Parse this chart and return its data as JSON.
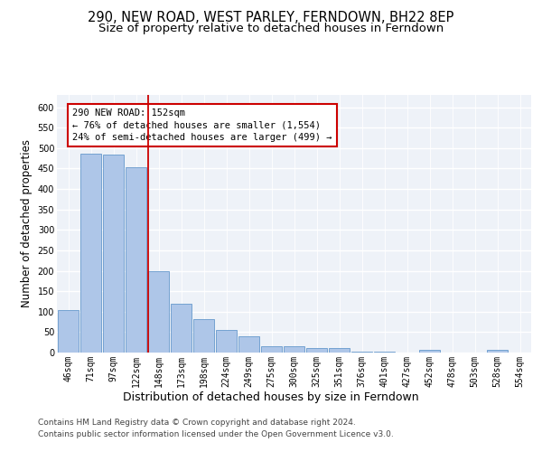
{
  "title": "290, NEW ROAD, WEST PARLEY, FERNDOWN, BH22 8EP",
  "subtitle": "Size of property relative to detached houses in Ferndown",
  "xlabel": "Distribution of detached houses by size in Ferndown",
  "ylabel": "Number of detached properties",
  "categories": [
    "46sqm",
    "71sqm",
    "97sqm",
    "122sqm",
    "148sqm",
    "173sqm",
    "198sqm",
    "224sqm",
    "249sqm",
    "275sqm",
    "300sqm",
    "325sqm",
    "351sqm",
    "376sqm",
    "401sqm",
    "427sqm",
    "452sqm",
    "478sqm",
    "503sqm",
    "528sqm",
    "554sqm"
  ],
  "values": [
    105,
    487,
    485,
    453,
    200,
    120,
    82,
    56,
    40,
    15,
    15,
    10,
    10,
    2,
    2,
    0,
    6,
    0,
    0,
    6,
    0
  ],
  "bar_color": "#aec6e8",
  "bar_edge_color": "#6699cc",
  "annotation_line1": "290 NEW ROAD: 152sqm",
  "annotation_line2": "← 76% of detached houses are smaller (1,554)",
  "annotation_line3": "24% of semi-detached houses are larger (499) →",
  "vline_index": 4,
  "vline_color": "#cc0000",
  "annotation_box_color": "#cc0000",
  "ylim": [
    0,
    630
  ],
  "yticks": [
    0,
    50,
    100,
    150,
    200,
    250,
    300,
    350,
    400,
    450,
    500,
    550,
    600
  ],
  "background_color": "#eef2f8",
  "footer_line1": "Contains HM Land Registry data © Crown copyright and database right 2024.",
  "footer_line2": "Contains public sector information licensed under the Open Government Licence v3.0.",
  "title_fontsize": 10.5,
  "subtitle_fontsize": 9.5,
  "ylabel_fontsize": 8.5,
  "xlabel_fontsize": 9,
  "tick_fontsize": 7,
  "annotation_fontsize": 7.5,
  "footer_fontsize": 6.5
}
